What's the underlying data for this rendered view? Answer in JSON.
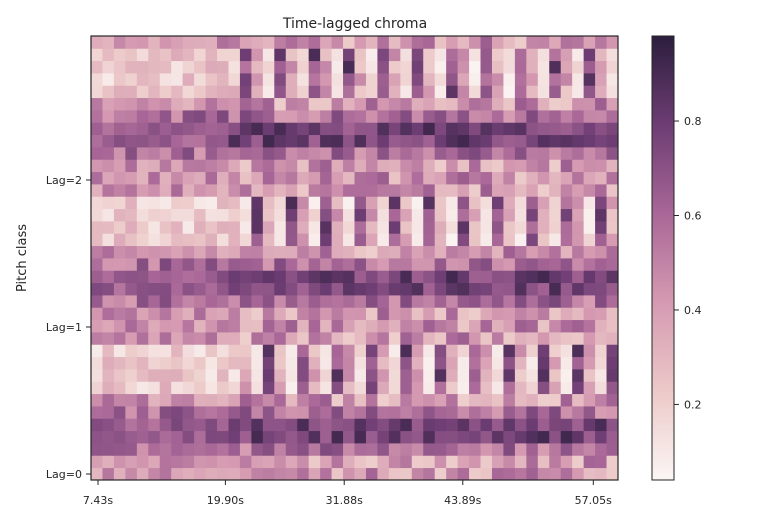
{
  "chart_data": {
    "type": "heatmap",
    "title": "Time-lagged chroma",
    "xlabel": "",
    "ylabel": "Pitch class",
    "x_ticks": [
      "7.43s",
      "19.90s",
      "31.88s",
      "43.89s",
      "57.05s"
    ],
    "y_ticks": [
      "Lag=0",
      "Lag=1",
      "Lag=2"
    ],
    "value_range": [
      0.04,
      0.98
    ],
    "colorbar_ticks": [
      0.2,
      0.4,
      0.6,
      0.8
    ],
    "colormap": [
      "#fbf6f4",
      "#ecc9c8",
      "#d59ab1",
      "#a86797",
      "#6d3d73",
      "#2c1e3d"
    ],
    "n_rows": 36,
    "n_cols": 46,
    "grid": false
  }
}
